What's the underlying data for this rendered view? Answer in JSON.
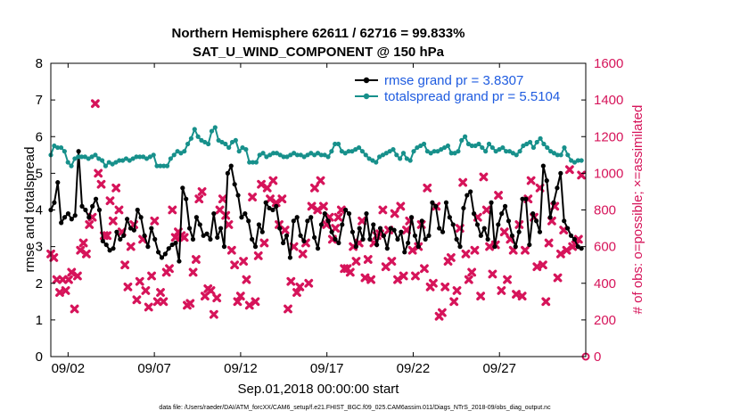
{
  "chart_data": {
    "type": "line",
    "title": "Northern Hemisphere 62611 / 62716 = 99.833%",
    "subtitle": "SAT_U_WIND_COMPONENT @ 150 hPa",
    "xlabel": "Sep.01,2018 00:00:00 start",
    "ylabel": "rmse and totalspread",
    "ylabel_right": "# of obs: o=possible; ×=assimilated",
    "xlim": [
      1,
      32
    ],
    "ylim": [
      0,
      8
    ],
    "ylim_right": [
      0,
      1600
    ],
    "x_ticks": [
      2,
      7,
      12,
      17,
      22,
      27
    ],
    "x_tick_labels": [
      "09/02",
      "09/07",
      "09/12",
      "09/17",
      "09/22",
      "09/27"
    ],
    "y_ticks": [
      0,
      1,
      2,
      3,
      4,
      5,
      6,
      7,
      8
    ],
    "y_ticks_right": [
      0,
      200,
      400,
      600,
      800,
      1000,
      1200,
      1400,
      1600
    ],
    "legend_position": "top-right",
    "footer": "data file: /Users/raeder/DAI/ATM_forcXX/CAM6_setup/f.e21.FHIST_BGC.f09_025.CAM6assim.011/Diags_NTrS_2018-09/obs_diag_output.nc",
    "series": [
      {
        "name": "rmse grand pr = 3.8307",
        "color": "#000000",
        "marker": "circle",
        "axis": "left",
        "values": [
          4.0,
          4.2,
          4.75,
          3.65,
          3.8,
          3.9,
          3.75,
          3.85,
          5.6,
          4.1,
          4.0,
          3.8,
          4.1,
          4.3,
          4.0,
          3.15,
          3.05,
          2.9,
          2.95,
          3.4,
          3.2,
          3.3,
          3.75,
          3.5,
          3.45,
          4.0,
          3.8,
          3.3,
          3.0,
          3.5,
          3.2,
          2.85,
          2.7,
          2.8,
          2.95,
          3.05,
          3.1,
          2.6,
          4.6,
          4.3,
          3.5,
          3.2,
          3.8,
          3.6,
          3.3,
          3.35,
          3.2,
          3.9,
          3.25,
          3.5,
          3.0,
          5.0,
          5.2,
          4.7,
          4.4,
          3.8,
          3.9,
          3.7,
          3.2,
          3.0,
          3.6,
          3.4,
          4.2,
          4.05,
          4.0,
          4.1,
          3.5,
          3.1,
          3.3,
          2.7,
          3.7,
          3.8,
          3.3,
          3.15,
          3.7,
          3.8,
          3.25,
          2.95,
          3.6,
          3.9,
          3.7,
          3.4,
          3.2,
          3.1,
          3.6,
          4.0,
          3.9,
          3.4,
          3.0,
          3.5,
          3.2,
          3.9,
          3.2,
          3.6,
          3.05,
          3.5,
          3.3,
          2.95,
          3.5,
          3.45,
          3.2,
          3.4,
          2.85,
          3.1,
          3.8,
          3.3,
          3.0,
          3.7,
          3.2,
          3.3,
          4.2,
          4.1,
          3.5,
          3.4,
          4.2,
          3.8,
          3.6,
          3.2,
          3.0,
          4.05,
          4.4,
          4.5,
          3.9,
          3.6,
          3.3,
          3.5,
          3.2,
          4.2,
          3.0,
          3.6,
          3.9,
          4.1,
          3.7,
          3.3,
          3.0,
          3.4,
          4.3,
          4.3,
          3.05,
          3.9,
          3.7,
          3.4,
          5.2,
          4.8,
          3.8,
          4.2,
          4.6,
          5.0,
          3.7,
          3.5,
          3.3,
          3.2,
          3.0,
          2.95
        ]
      },
      {
        "name": "totalspread grand pr = 5.5104",
        "color": "#17908b",
        "marker": "circle",
        "axis": "left",
        "values": [
          5.5,
          5.75,
          5.7,
          5.7,
          5.6,
          5.3,
          5.2,
          5.4,
          5.45,
          5.45,
          5.45,
          5.4,
          5.45,
          5.5,
          5.4,
          5.35,
          5.2,
          5.3,
          5.25,
          5.3,
          5.35,
          5.35,
          5.4,
          5.35,
          5.4,
          5.45,
          5.45,
          5.45,
          5.4,
          5.45,
          5.5,
          5.2,
          5.2,
          5.2,
          5.2,
          5.4,
          5.5,
          5.6,
          5.55,
          5.6,
          5.8,
          5.95,
          6.2,
          6.0,
          5.9,
          5.85,
          5.8,
          6.15,
          6.25,
          5.9,
          5.85,
          5.8,
          5.7,
          5.85,
          5.9,
          5.6,
          5.7,
          5.65,
          5.3,
          5.3,
          5.3,
          5.5,
          5.55,
          5.45,
          5.5,
          5.55,
          5.55,
          5.5,
          5.45,
          5.45,
          5.5,
          5.55,
          5.5,
          5.5,
          5.45,
          5.5,
          5.55,
          5.5,
          5.55,
          5.5,
          5.5,
          5.45,
          5.6,
          5.8,
          5.8,
          5.6,
          5.55,
          5.6,
          5.6,
          5.65,
          5.7,
          5.6,
          5.5,
          5.4,
          5.35,
          5.3,
          5.45,
          5.5,
          5.55,
          5.6,
          5.65,
          5.5,
          5.4,
          5.55,
          5.4,
          5.35,
          5.6,
          5.7,
          5.75,
          5.8,
          5.6,
          5.55,
          5.6,
          5.6,
          5.65,
          5.7,
          5.75,
          5.55,
          5.55,
          5.6,
          5.9,
          6.0,
          5.8,
          5.75,
          5.75,
          5.8,
          5.7,
          5.6,
          5.8,
          5.7,
          5.6,
          5.65,
          5.7,
          5.6,
          5.6,
          5.55,
          5.5,
          5.6,
          5.75,
          5.8,
          5.85,
          5.7,
          5.85,
          5.95,
          5.8,
          5.7,
          5.6,
          5.55,
          5.5,
          5.5,
          5.7,
          5.5,
          5.35,
          5.3,
          5.35,
          5.35
        ]
      },
      {
        "name": "obs assimilated",
        "color": "#d6145a",
        "marker": "x",
        "axis": "right",
        "values": [
          560,
          540,
          420,
          350,
          420,
          360,
          420,
          460,
          260,
          440,
          580,
          620,
          560,
          720,
          760,
          1380,
          1000,
          940,
          660,
          660,
          850,
          740,
          920,
          800,
          680,
          500,
          380,
          600,
          720,
          310,
          410,
          640,
          360,
          270,
          440,
          740,
          300,
          350,
          300,
          460,
          480,
          800,
          650,
          680,
          660,
          650,
          280,
          290,
          460,
          530,
          860,
          900,
          330,
          370,
          360,
          230,
          320,
          800,
          860,
          770,
          720,
          580,
          500,
          300,
          330,
          520,
          420,
          280,
          870,
          300,
          550,
          940,
          620,
          920,
          860,
          960,
          840,
          720,
          860,
          690,
          260,
          410,
          600,
          350,
          380,
          560,
          620,
          400,
          820,
          920,
          800,
          960,
          820,
          720,
          760,
          640,
          700,
          760,
          800,
          480,
          480,
          460,
          600,
          520,
          620,
          740,
          430,
          530,
          420,
          620,
          660,
          670,
          800,
          490,
          690,
          520,
          780,
          420,
          820,
          440,
          690,
          740,
          580,
          440,
          600,
          720,
          480,
          920,
          380,
          400,
          820,
          220,
          240,
          380,
          520,
          540,
          300,
          360,
          700,
          950,
          560,
          420,
          460,
          580,
          760,
          330,
          980,
          800,
          600,
          450,
          610,
          880,
          360,
          680,
          420,
          640,
          580,
          340,
          720,
          330,
          580,
          860,
          960,
          760,
          490,
          920,
          500,
          300,
          620,
          740,
          820,
          430,
          560,
          690,
          580,
          1020,
          600,
          610,
          640,
          990
        ]
      },
      {
        "name": "obs possible",
        "color": "#d6145a",
        "marker": "circle-open",
        "axis": "right",
        "values": [
          0
        ]
      }
    ]
  }
}
